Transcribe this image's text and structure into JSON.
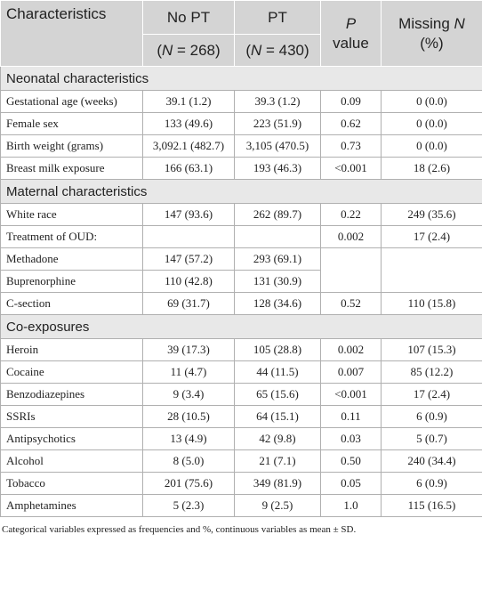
{
  "header": {
    "characteristics": "Characteristics",
    "no_pt": "No PT",
    "pt": "PT",
    "no_pt_n": [
      "(",
      "N",
      "= 268)"
    ],
    "pt_n": [
      "(",
      "N",
      "= 430)"
    ],
    "p_value": [
      "P",
      "value"
    ],
    "missing": [
      "Missing",
      "N",
      "(%)"
    ]
  },
  "sections": [
    {
      "title": "Neonatal characteristics",
      "rows": [
        {
          "label": "Gestational age (weeks)",
          "no_pt": "39.1 (1.2)",
          "pt": "39.3 (1.2)",
          "p": "0.09",
          "missing": "0 (0.0)"
        },
        {
          "label": "Female sex",
          "no_pt": "133 (49.6)",
          "pt": "223 (51.9)",
          "p": "0.62",
          "missing": "0 (0.0)"
        },
        {
          "label": "Birth weight (grams)",
          "no_pt": "3,092.1 (482.7)",
          "pt": "3,105 (470.5)",
          "p": "0.73",
          "missing": "0 (0.0)"
        },
        {
          "label": "Breast milk exposure",
          "no_pt": "166 (63.1)",
          "pt": "193 (46.3)",
          "p": "<0.001",
          "missing": "18 (2.6)"
        }
      ]
    },
    {
      "title": "Maternal characteristics",
      "rows": [
        {
          "label": "White race",
          "no_pt": "147 (93.6)",
          "pt": "262 (89.7)",
          "p": "0.22",
          "missing": "249 (35.6)"
        },
        {
          "label": "Treatment of OUD:",
          "p": "0.002",
          "missing": "17 (2.4)"
        },
        {
          "label": "Methadone",
          "no_pt": "147 (57.2)",
          "pt": "293 (69.1)"
        },
        {
          "label": "Buprenorphine",
          "no_pt": "110 (42.8)",
          "pt": "131 (30.9)"
        },
        {
          "label": "C-section",
          "no_pt": "69 (31.7)",
          "pt": "128 (34.6)",
          "p": "0.52",
          "missing": "110 (15.8)"
        }
      ]
    },
    {
      "title": "Co-exposures",
      "rows": [
        {
          "label": "Heroin",
          "no_pt": "39 (17.3)",
          "pt": "105 (28.8)",
          "p": "0.002",
          "missing": "107 (15.3)"
        },
        {
          "label": "Cocaine",
          "no_pt": "11 (4.7)",
          "pt": "44 (11.5)",
          "p": "0.007",
          "missing": "85 (12.2)"
        },
        {
          "label": "Benzodiazepines",
          "no_pt": "9 (3.4)",
          "pt": "65 (15.6)",
          "p": "<0.001",
          "missing": "17 (2.4)"
        },
        {
          "label": "SSRIs",
          "no_pt": "28 (10.5)",
          "pt": "64 (15.1)",
          "p": "0.11",
          "missing": "6 (0.9)"
        },
        {
          "label": "Antipsychotics",
          "no_pt": "13 (4.9)",
          "pt": "42 (9.8)",
          "p": "0.03",
          "missing": "5 (0.7)"
        },
        {
          "label": "Alcohol",
          "no_pt": "8 (5.0)",
          "pt": "21 (7.1)",
          "p": "0.50",
          "missing": "240 (34.4)"
        },
        {
          "label": "Tobacco",
          "no_pt": "201 (75.6)",
          "pt": "349 (81.9)",
          "p": "0.05",
          "missing": "6 (0.9)"
        },
        {
          "label": "Amphetamines",
          "no_pt": "5 (2.3)",
          "pt": "9 (2.5)",
          "p": "1.0",
          "missing": "115 (16.5)"
        }
      ]
    }
  ],
  "footnote": "Categorical variables expressed as frequencies and %, continuous variables as mean ± SD."
}
